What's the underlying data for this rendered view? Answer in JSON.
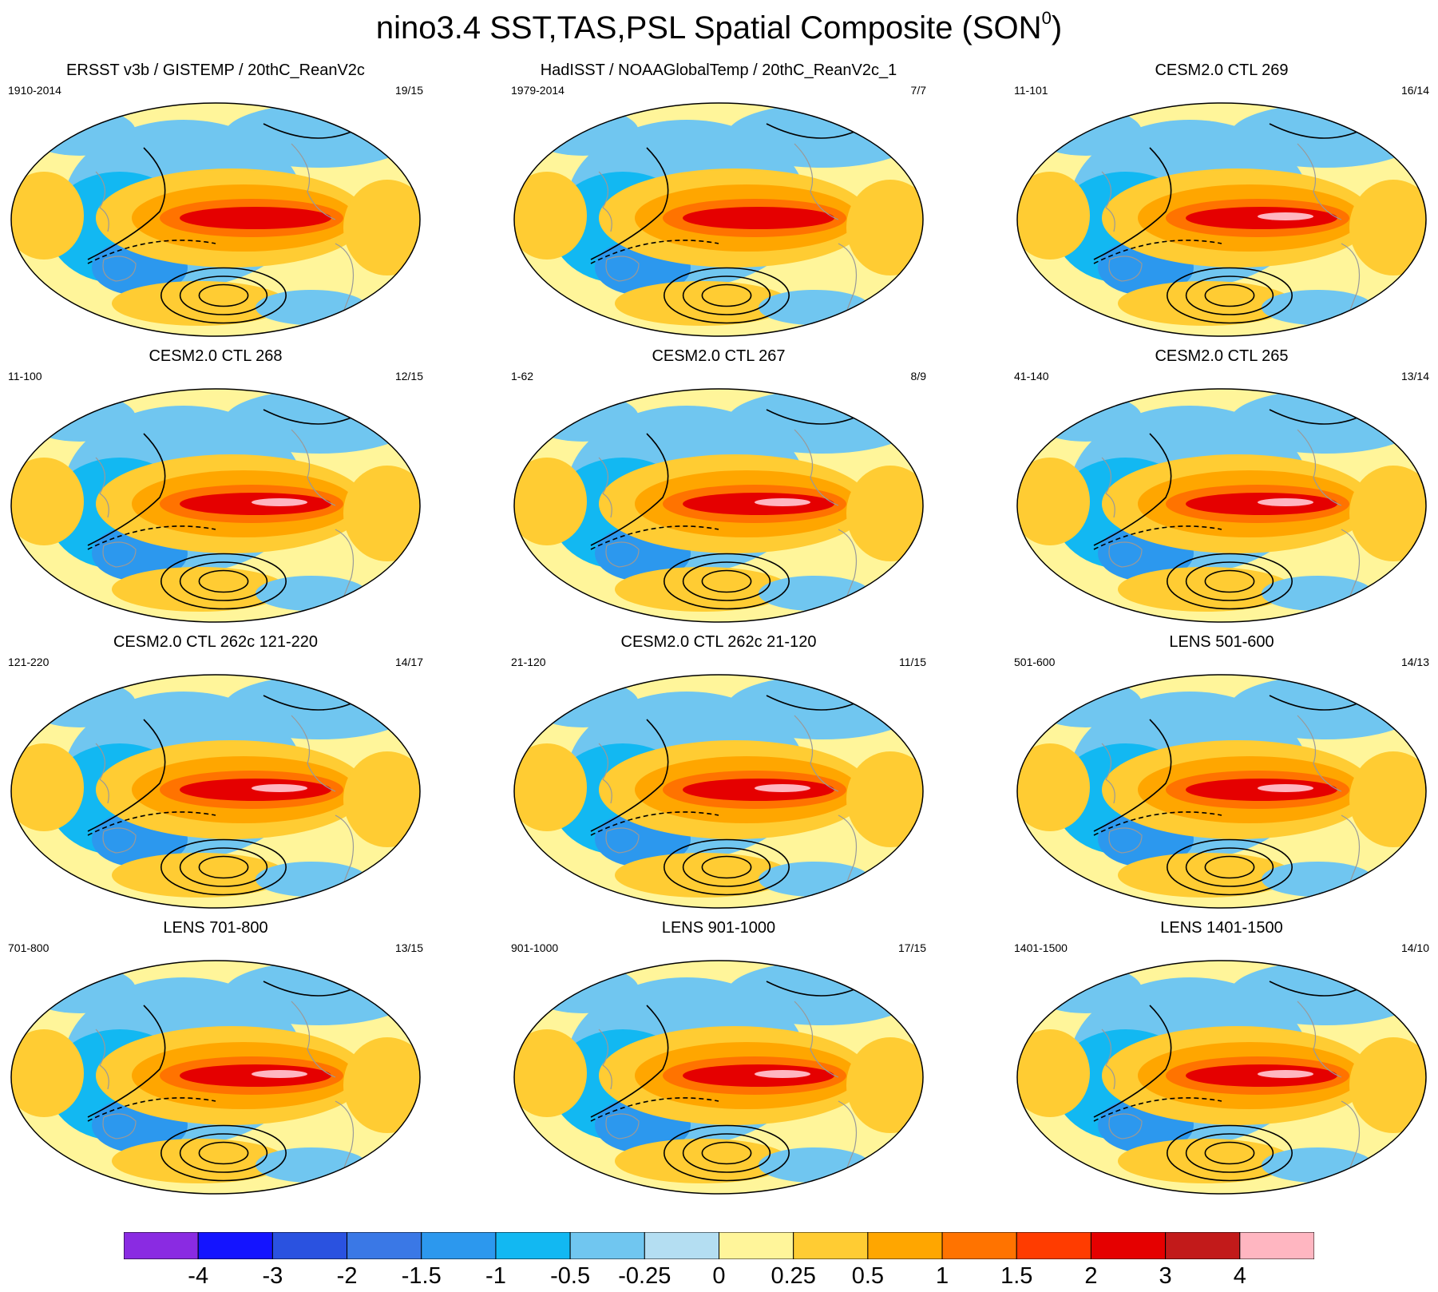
{
  "title": {
    "text": "nino3.4 SST,TAS,PSL Spatial Composite (SON",
    "superscript": "0",
    "close": ")"
  },
  "panels": [
    {
      "title": "ERSST v3b / GISTEMP / 20thC_ReanV2c",
      "period": "1910-2014",
      "counts": "19/15"
    },
    {
      "title": "HadISST / NOAAGlobalTemp / 20thC_ReanV2c_1",
      "period": "1979-2014",
      "counts": "7/7"
    },
    {
      "title": "CESM2.0 CTL 269",
      "period": "11-101",
      "counts": "16/14"
    },
    {
      "title": "CESM2.0 CTL 268",
      "period": "11-100",
      "counts": "12/15"
    },
    {
      "title": "CESM2.0 CTL 267",
      "period": "1-62",
      "counts": "8/9"
    },
    {
      "title": "CESM2.0 CTL 265",
      "period": "41-140",
      "counts": "13/14"
    },
    {
      "title": "CESM2.0 CTL 262c 121-220",
      "period": "121-220",
      "counts": "14/17"
    },
    {
      "title": "CESM2.0 CTL 262c 21-120",
      "period": "21-120",
      "counts": "11/15"
    },
    {
      "title": "LENS 501-600",
      "period": "501-600",
      "counts": "14/13"
    },
    {
      "title": "LENS 701-800",
      "period": "701-800",
      "counts": "13/15"
    },
    {
      "title": "LENS 901-1000",
      "period": "901-1000",
      "counts": "17/15"
    },
    {
      "title": "LENS 1401-1500",
      "period": "1401-1500",
      "counts": "14/10"
    }
  ],
  "colorbar": {
    "labels": [
      "-4",
      "-3",
      "-2",
      "-1.5",
      "-1",
      "-0.5",
      "-0.25",
      "0",
      "0.25",
      "0.5",
      "1",
      "1.5",
      "2",
      "3",
      "4"
    ],
    "colors": [
      "#8a2be2",
      "#1414ff",
      "#2a52e0",
      "#3a78e6",
      "#2c98ee",
      "#12b8f2",
      "#70c6f0",
      "#b4def2",
      "#fff59a",
      "#ffcc33",
      "#ffa600",
      "#ff7300",
      "#ff3c00",
      "#e50000",
      "#c21a1a",
      "#ffb6c1"
    ],
    "land_outline": "#999999",
    "contour": "#000000"
  }
}
